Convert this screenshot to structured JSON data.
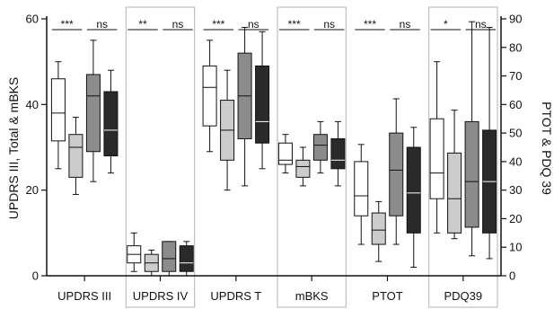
{
  "chart_data": {
    "type": "boxplot",
    "y_left": {
      "label": "UPDRS III, Total & mBKS",
      "ticks": [
        0,
        20,
        40,
        60
      ],
      "range": [
        0,
        60
      ]
    },
    "y_right": {
      "label": "PTOT & PDQ 39",
      "ticks": [
        0,
        10,
        20,
        30,
        40,
        50,
        60,
        70,
        80,
        90
      ],
      "range": [
        0,
        90
      ]
    },
    "groups_per_category": 4,
    "box_fills": [
      "#ffffff",
      "#cccccc",
      "#8c8c8c",
      "#2a2a2a"
    ],
    "categories": [
      {
        "label": "UPDRS III",
        "axis": "left",
        "shaded": false,
        "boxes": [
          {
            "min": 25,
            "q1": 31.5,
            "median": 38,
            "q3": 46,
            "max": 50
          },
          {
            "min": 19,
            "q1": 23,
            "median": 30,
            "q3": 33,
            "max": 37
          },
          {
            "min": 22,
            "q1": 29,
            "median": 42,
            "q3": 47,
            "max": 55
          },
          {
            "min": 24,
            "q1": 28,
            "median": 34,
            "q3": 43,
            "max": 48
          }
        ],
        "sig": [
          {
            "pair": [
              0,
              1
            ],
            "text": "***"
          },
          {
            "pair": [
              2,
              3
            ],
            "text": "ns"
          }
        ]
      },
      {
        "label": "UPDRS IV",
        "axis": "left",
        "shaded": true,
        "boxes": [
          {
            "min": 1,
            "q1": 3,
            "median": 5,
            "q3": 7,
            "max": 10
          },
          {
            "min": 0,
            "q1": 1,
            "median": 3,
            "q3": 5,
            "max": 6
          },
          {
            "min": 0,
            "q1": 1,
            "median": 4,
            "q3": 8,
            "max": 8
          },
          {
            "min": 0,
            "q1": 1,
            "median": 3,
            "q3": 7,
            "max": 8
          }
        ],
        "sig": [
          {
            "pair": [
              0,
              1
            ],
            "text": "**"
          },
          {
            "pair": [
              2,
              3
            ],
            "text": "ns"
          }
        ]
      },
      {
        "label": "UPDRS T",
        "axis": "left",
        "shaded": false,
        "boxes": [
          {
            "min": 29,
            "q1": 35,
            "median": 44,
            "q3": 49,
            "max": 55
          },
          {
            "min": 20,
            "q1": 27,
            "median": 34,
            "q3": 41,
            "max": 48
          },
          {
            "min": 21,
            "q1": 32,
            "median": 42,
            "q3": 52,
            "max": 58
          },
          {
            "min": 25,
            "q1": 31,
            "median": 36,
            "q3": 49,
            "max": 57
          }
        ],
        "sig": [
          {
            "pair": [
              0,
              1
            ],
            "text": "***"
          },
          {
            "pair": [
              2,
              3
            ],
            "text": "ns"
          }
        ]
      },
      {
        "label": "mBKS",
        "axis": "left",
        "shaded": true,
        "boxes": [
          {
            "min": 24,
            "q1": 26,
            "median": 27,
            "q3": 31,
            "max": 33
          },
          {
            "min": 21,
            "q1": 23,
            "median": 25.5,
            "q3": 27,
            "max": 30
          },
          {
            "min": 24,
            "q1": 27,
            "median": 30.5,
            "q3": 33,
            "max": 36
          },
          {
            "min": 21,
            "q1": 25,
            "median": 27,
            "q3": 32,
            "max": 36
          }
        ],
        "sig": [
          {
            "pair": [
              0,
              1
            ],
            "text": "***"
          },
          {
            "pair": [
              2,
              3
            ],
            "text": "ns"
          }
        ]
      },
      {
        "label": "PTOT",
        "axis": "right",
        "shaded": false,
        "boxes": [
          {
            "min": 11,
            "q1": 21,
            "median": 28,
            "q3": 40,
            "max": 46
          },
          {
            "min": 5,
            "q1": 11,
            "median": 16,
            "q3": 22,
            "max": 26
          },
          {
            "min": 11,
            "q1": 21,
            "median": 37,
            "q3": 50,
            "max": 62
          },
          {
            "min": 3,
            "q1": 15,
            "median": 29,
            "q3": 45,
            "max": 52
          }
        ],
        "sig": [
          {
            "pair": [
              0,
              1
            ],
            "text": "***"
          },
          {
            "pair": [
              2,
              3
            ],
            "text": "ns"
          }
        ]
      },
      {
        "label": "PDQ39",
        "axis": "right",
        "shaded": true,
        "boxes": [
          {
            "min": 15,
            "q1": 27,
            "median": 36,
            "q3": 55,
            "max": 75
          },
          {
            "min": 13,
            "q1": 15,
            "median": 27,
            "q3": 43,
            "max": 58
          },
          {
            "min": 7,
            "q1": 17,
            "median": 33,
            "q3": 54,
            "max": 89
          },
          {
            "min": 6,
            "q1": 15,
            "median": 33,
            "q3": 51,
            "max": 87
          }
        ],
        "sig": [
          {
            "pair": [
              0,
              1
            ],
            "text": "*"
          },
          {
            "pair": [
              2,
              3
            ],
            "text": "ns"
          }
        ]
      }
    ]
  }
}
